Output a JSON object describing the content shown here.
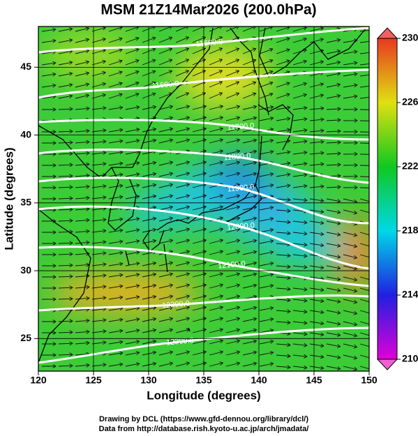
{
  "title": "MSM 21Z14Mar2026 (200.0hPa)",
  "map": {
    "xlabel": "Longitude (degrees)",
    "ylabel": "Latitude  (degrees)",
    "xlim": [
      120,
      150
    ],
    "ylim": [
      22.6,
      48
    ],
    "xticks": [
      120,
      125,
      130,
      135,
      140,
      145,
      150
    ],
    "yticks": [
      25,
      30,
      35,
      40,
      45
    ],
    "contour_labels": [
      "11600.0",
      "11600.0",
      "11700.0",
      "11800.0",
      "11900.0",
      "12000.0",
      "12100.0",
      "12200.0",
      "12300.0"
    ]
  },
  "colorbar": {
    "lim": [
      210,
      230
    ],
    "ticks": [
      210,
      214,
      218,
      222,
      226,
      230
    ]
  },
  "credits": [
    "Drawing by DCL (https://www.gfd-dennou.org/library/dcl/)",
    "Data from http://database.rish.kyoto-u.ac.jp/arch/jmadata/"
  ]
}
